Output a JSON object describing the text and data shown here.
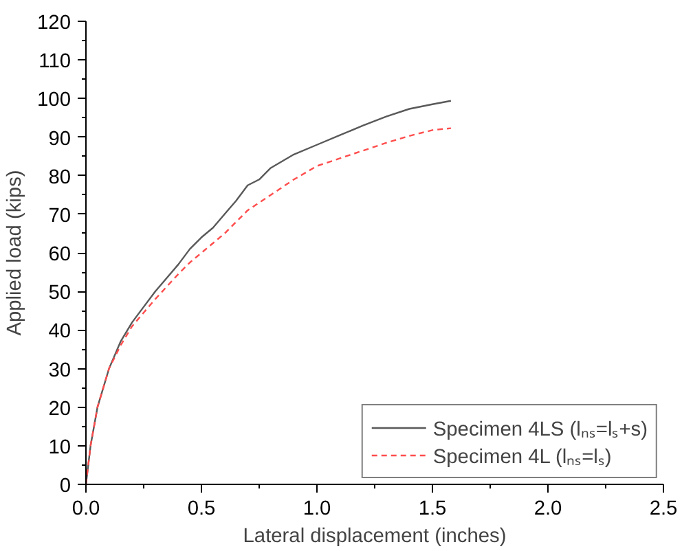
{
  "chart_data": {
    "type": "line",
    "xlabel": "Lateral displacement (inches)",
    "ylabel": "Applied load (kips)",
    "xlim": [
      0,
      2.5
    ],
    "xticks": [
      {
        "value": 0,
        "label": "0.0"
      },
      0.5,
      {
        "value": 1,
        "label": "1.0"
      },
      1.5,
      {
        "value": 2,
        "label": "2.0"
      },
      2.5
    ],
    "ylim": [
      0,
      120
    ],
    "yticks": [
      0,
      10,
      20,
      30,
      40,
      50,
      60,
      70,
      80,
      90,
      100,
      110,
      120
    ],
    "grid": false,
    "legend": "bottom right",
    "marker": "none",
    "x": [
      0,
      0.02,
      0.05,
      0.1,
      0.15,
      0.2,
      0.25,
      0.3,
      0.4,
      0.45,
      0.5,
      0.55,
      0.6,
      0.65,
      0.7,
      0.75,
      0.8,
      0.9,
      1.0,
      1.1,
      1.2,
      1.3,
      1.4,
      1.5,
      1.58
    ],
    "series": [
      {
        "name": "Specimen 4LS (lₙₛ=lₛ+s)",
        "color": "#595959",
        "line_style": "solid",
        "values": [
          0,
          10,
          20,
          30,
          37,
          42,
          46,
          50,
          57,
          61,
          64,
          66.5,
          70,
          73.5,
          77.5,
          79,
          82,
          85.5,
          88,
          90.5,
          93,
          95.3,
          97.3,
          98.5,
          99.4
        ]
      },
      {
        "name": "Specimen 4L (lₙₛ=lₛ)",
        "color": "#ff4d4d",
        "line_style": "dashed",
        "values": [
          0,
          10,
          20,
          30,
          36,
          41,
          44.5,
          48,
          54.5,
          57.5,
          60,
          62.5,
          65,
          68,
          71,
          73,
          75,
          79,
          82.5,
          84.5,
          86.5,
          88.5,
          90.3,
          91.8,
          92.3
        ]
      }
    ]
  }
}
